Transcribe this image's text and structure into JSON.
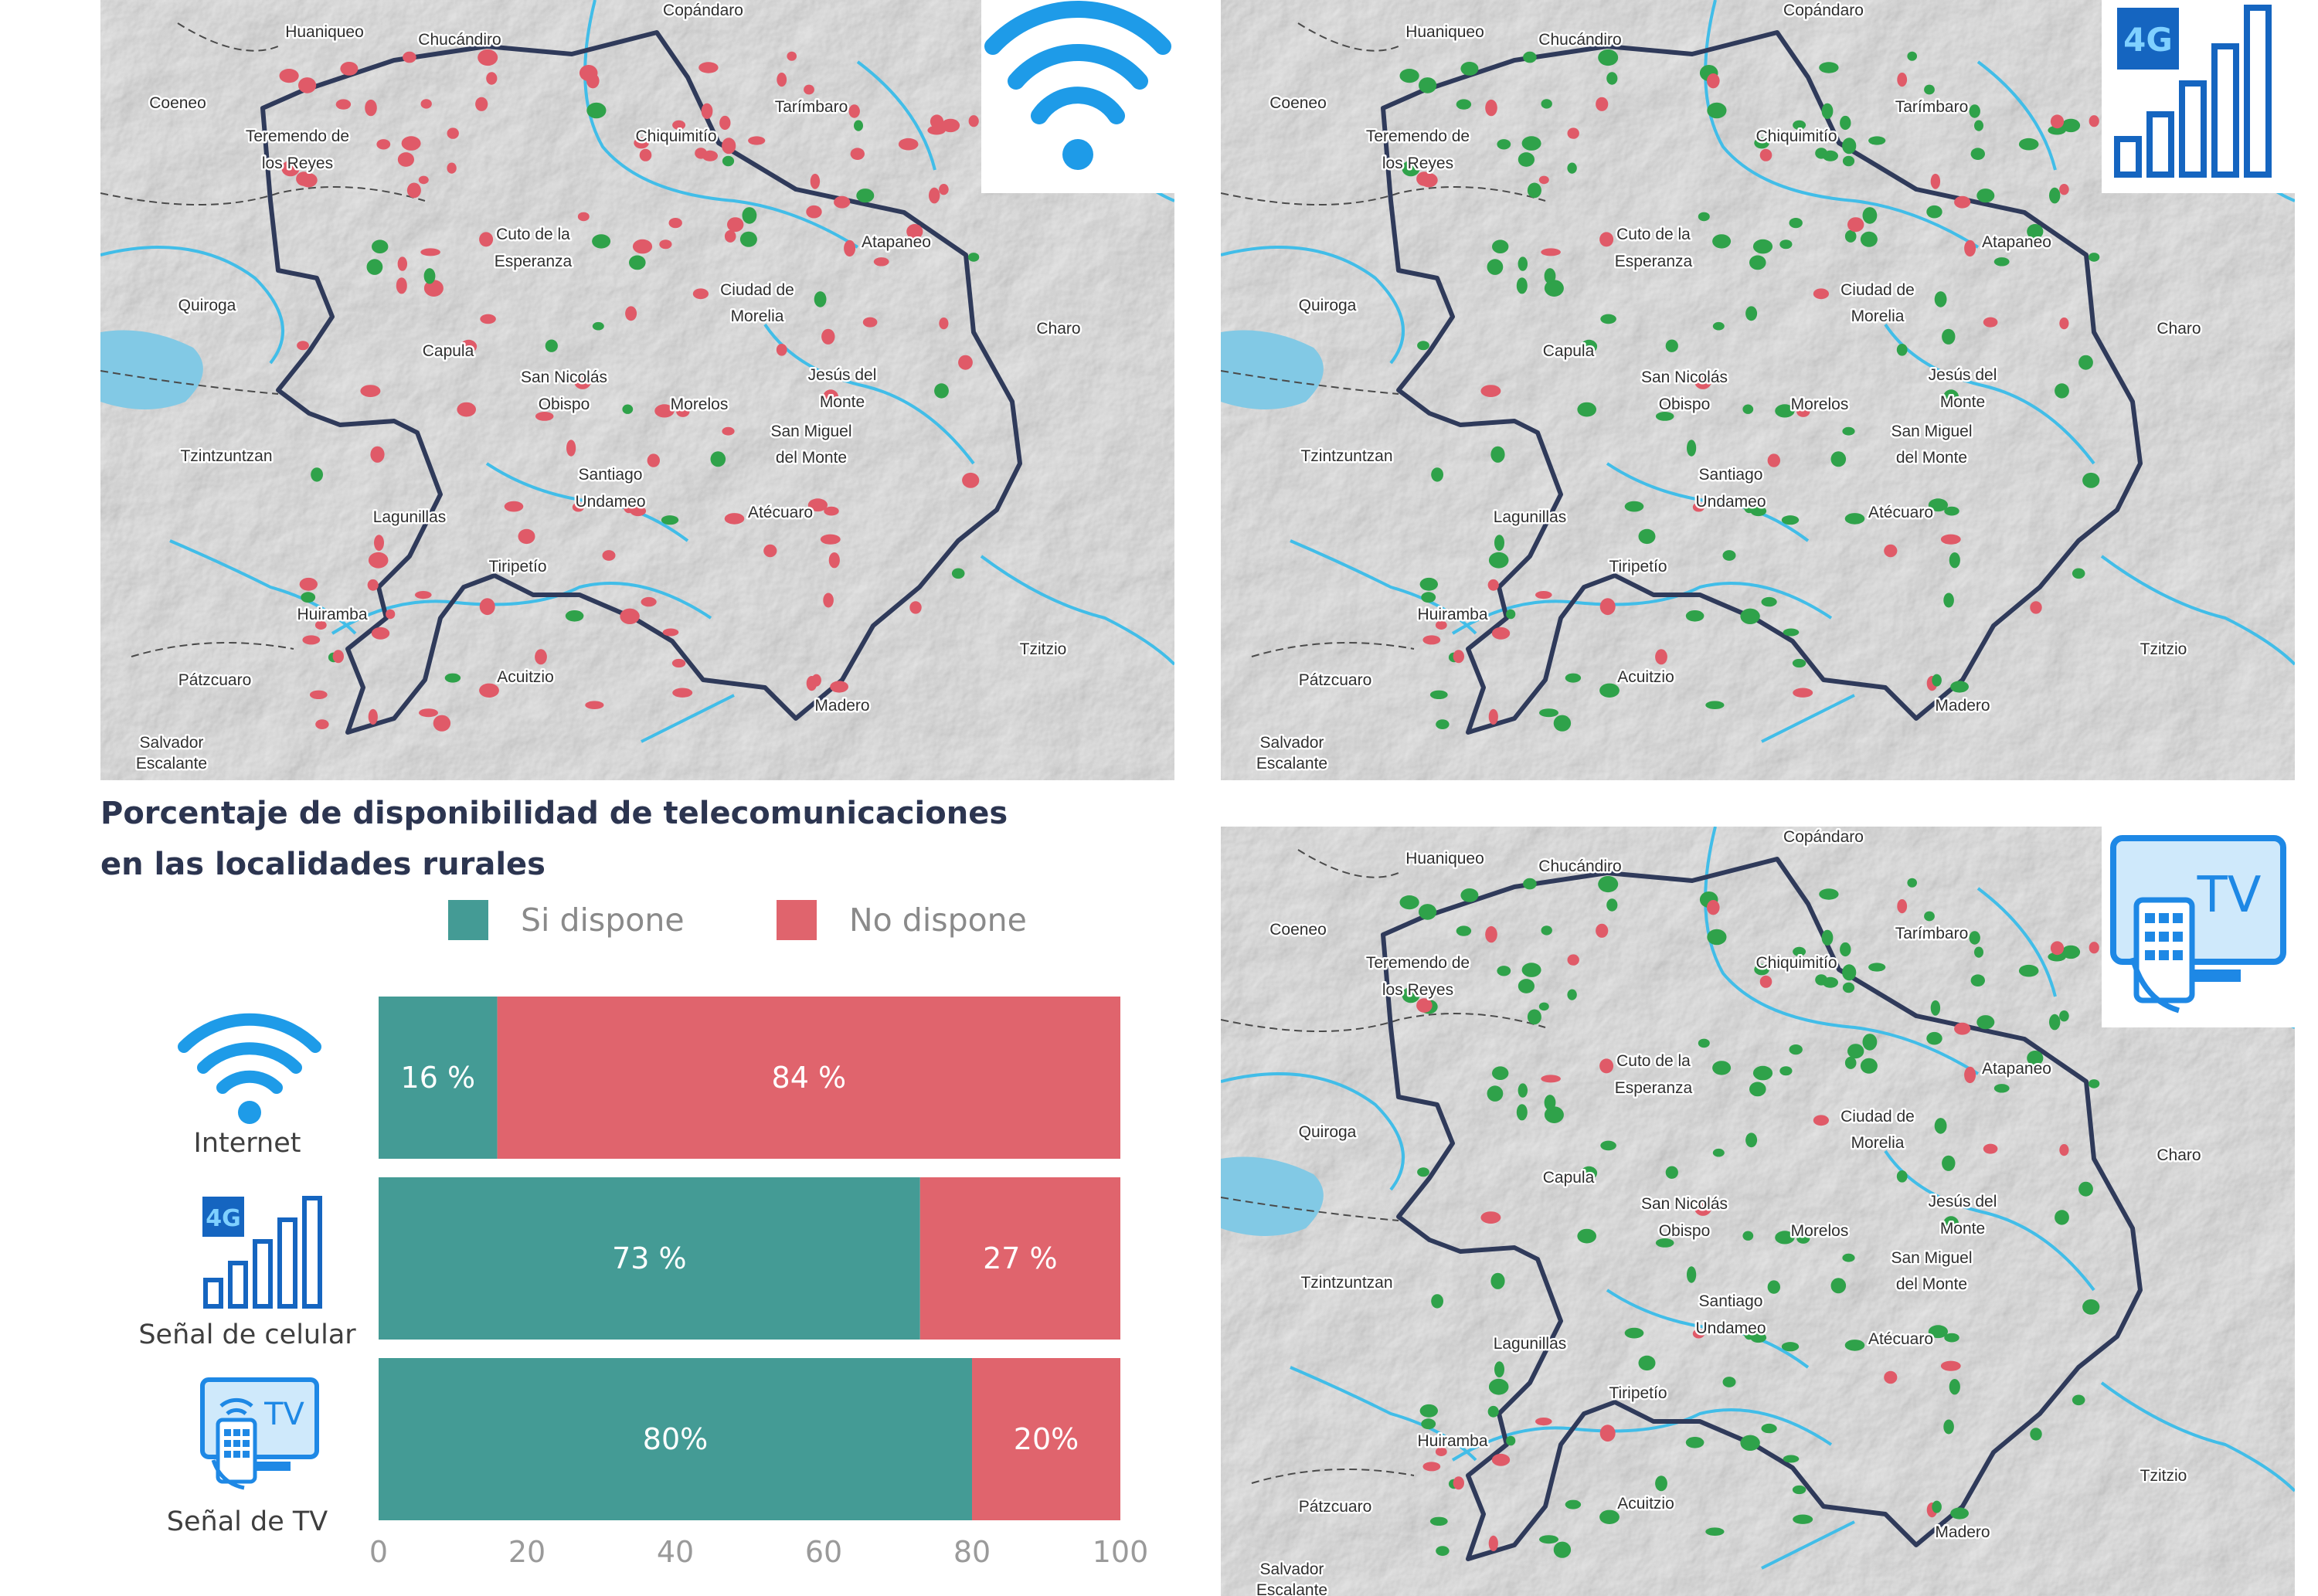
{
  "maps": [
    {
      "id": "internet",
      "icon": "wifi-icon",
      "icon_label": "Internet"
    },
    {
      "id": "celular",
      "icon": "cellular-4g-icon",
      "icon_label": "4G"
    },
    {
      "id": "tv",
      "icon": "tv-remote-icon",
      "icon_label": "TV"
    }
  ],
  "places": [
    "Huaniqueo",
    "Chucándiro",
    "Copándaro",
    "Coeneo",
    "Tarímbaro",
    "Teremendo de",
    "los Reyes",
    "Chiquimitío",
    "Cuto de la",
    "Esperanza",
    "Atapaneo",
    "Ciudad de",
    "Morelia",
    "Quiroga",
    "Charo",
    "Capula",
    "San Nicolás",
    "Obispo",
    "Jesús del",
    "Monte",
    "Morelos",
    "San Miguel",
    "del Monte",
    "Tzintzuntzan",
    "Santiago",
    "Undameo",
    "Lagunillas",
    "Atécuaro",
    "Tiripetío",
    "Huiramba",
    "Tzitzio",
    "Acuitzio",
    "Pátzcuaro",
    "Madero",
    "Salvador",
    "Escalante"
  ],
  "colors": {
    "si": "#449b95",
    "no": "#e0646d",
    "green_dot": "#2fa24a",
    "red_dot": "#e05a68",
    "river": "#41bde8",
    "boundary": "#2f3a5a",
    "lake": "#82c9e5"
  },
  "chart_data": {
    "type": "bar",
    "orientation": "horizontal-stacked",
    "title_lines": [
      "Porcentaje de disponibilidad de telecomunicaciones",
      "en las localidades rurales"
    ],
    "categories": [
      "Internet",
      "Señal de celular",
      "Señal de TV"
    ],
    "series": [
      {
        "name": "Si dispone",
        "color": "#449b95",
        "values": [
          16,
          73,
          80
        ],
        "labels": [
          "16 %",
          "73 %",
          "80%"
        ]
      },
      {
        "name": "No dispone",
        "color": "#e0646d",
        "values": [
          84,
          27,
          20
        ],
        "labels": [
          "84 %",
          "27 %",
          "20%"
        ]
      }
    ],
    "xlim": [
      0,
      100
    ],
    "xticks": [
      0,
      20,
      40,
      60,
      80,
      100
    ],
    "xtick_labels": [
      "0",
      "20",
      "40",
      "60",
      "80",
      "100"
    ],
    "legend_position": "top"
  }
}
